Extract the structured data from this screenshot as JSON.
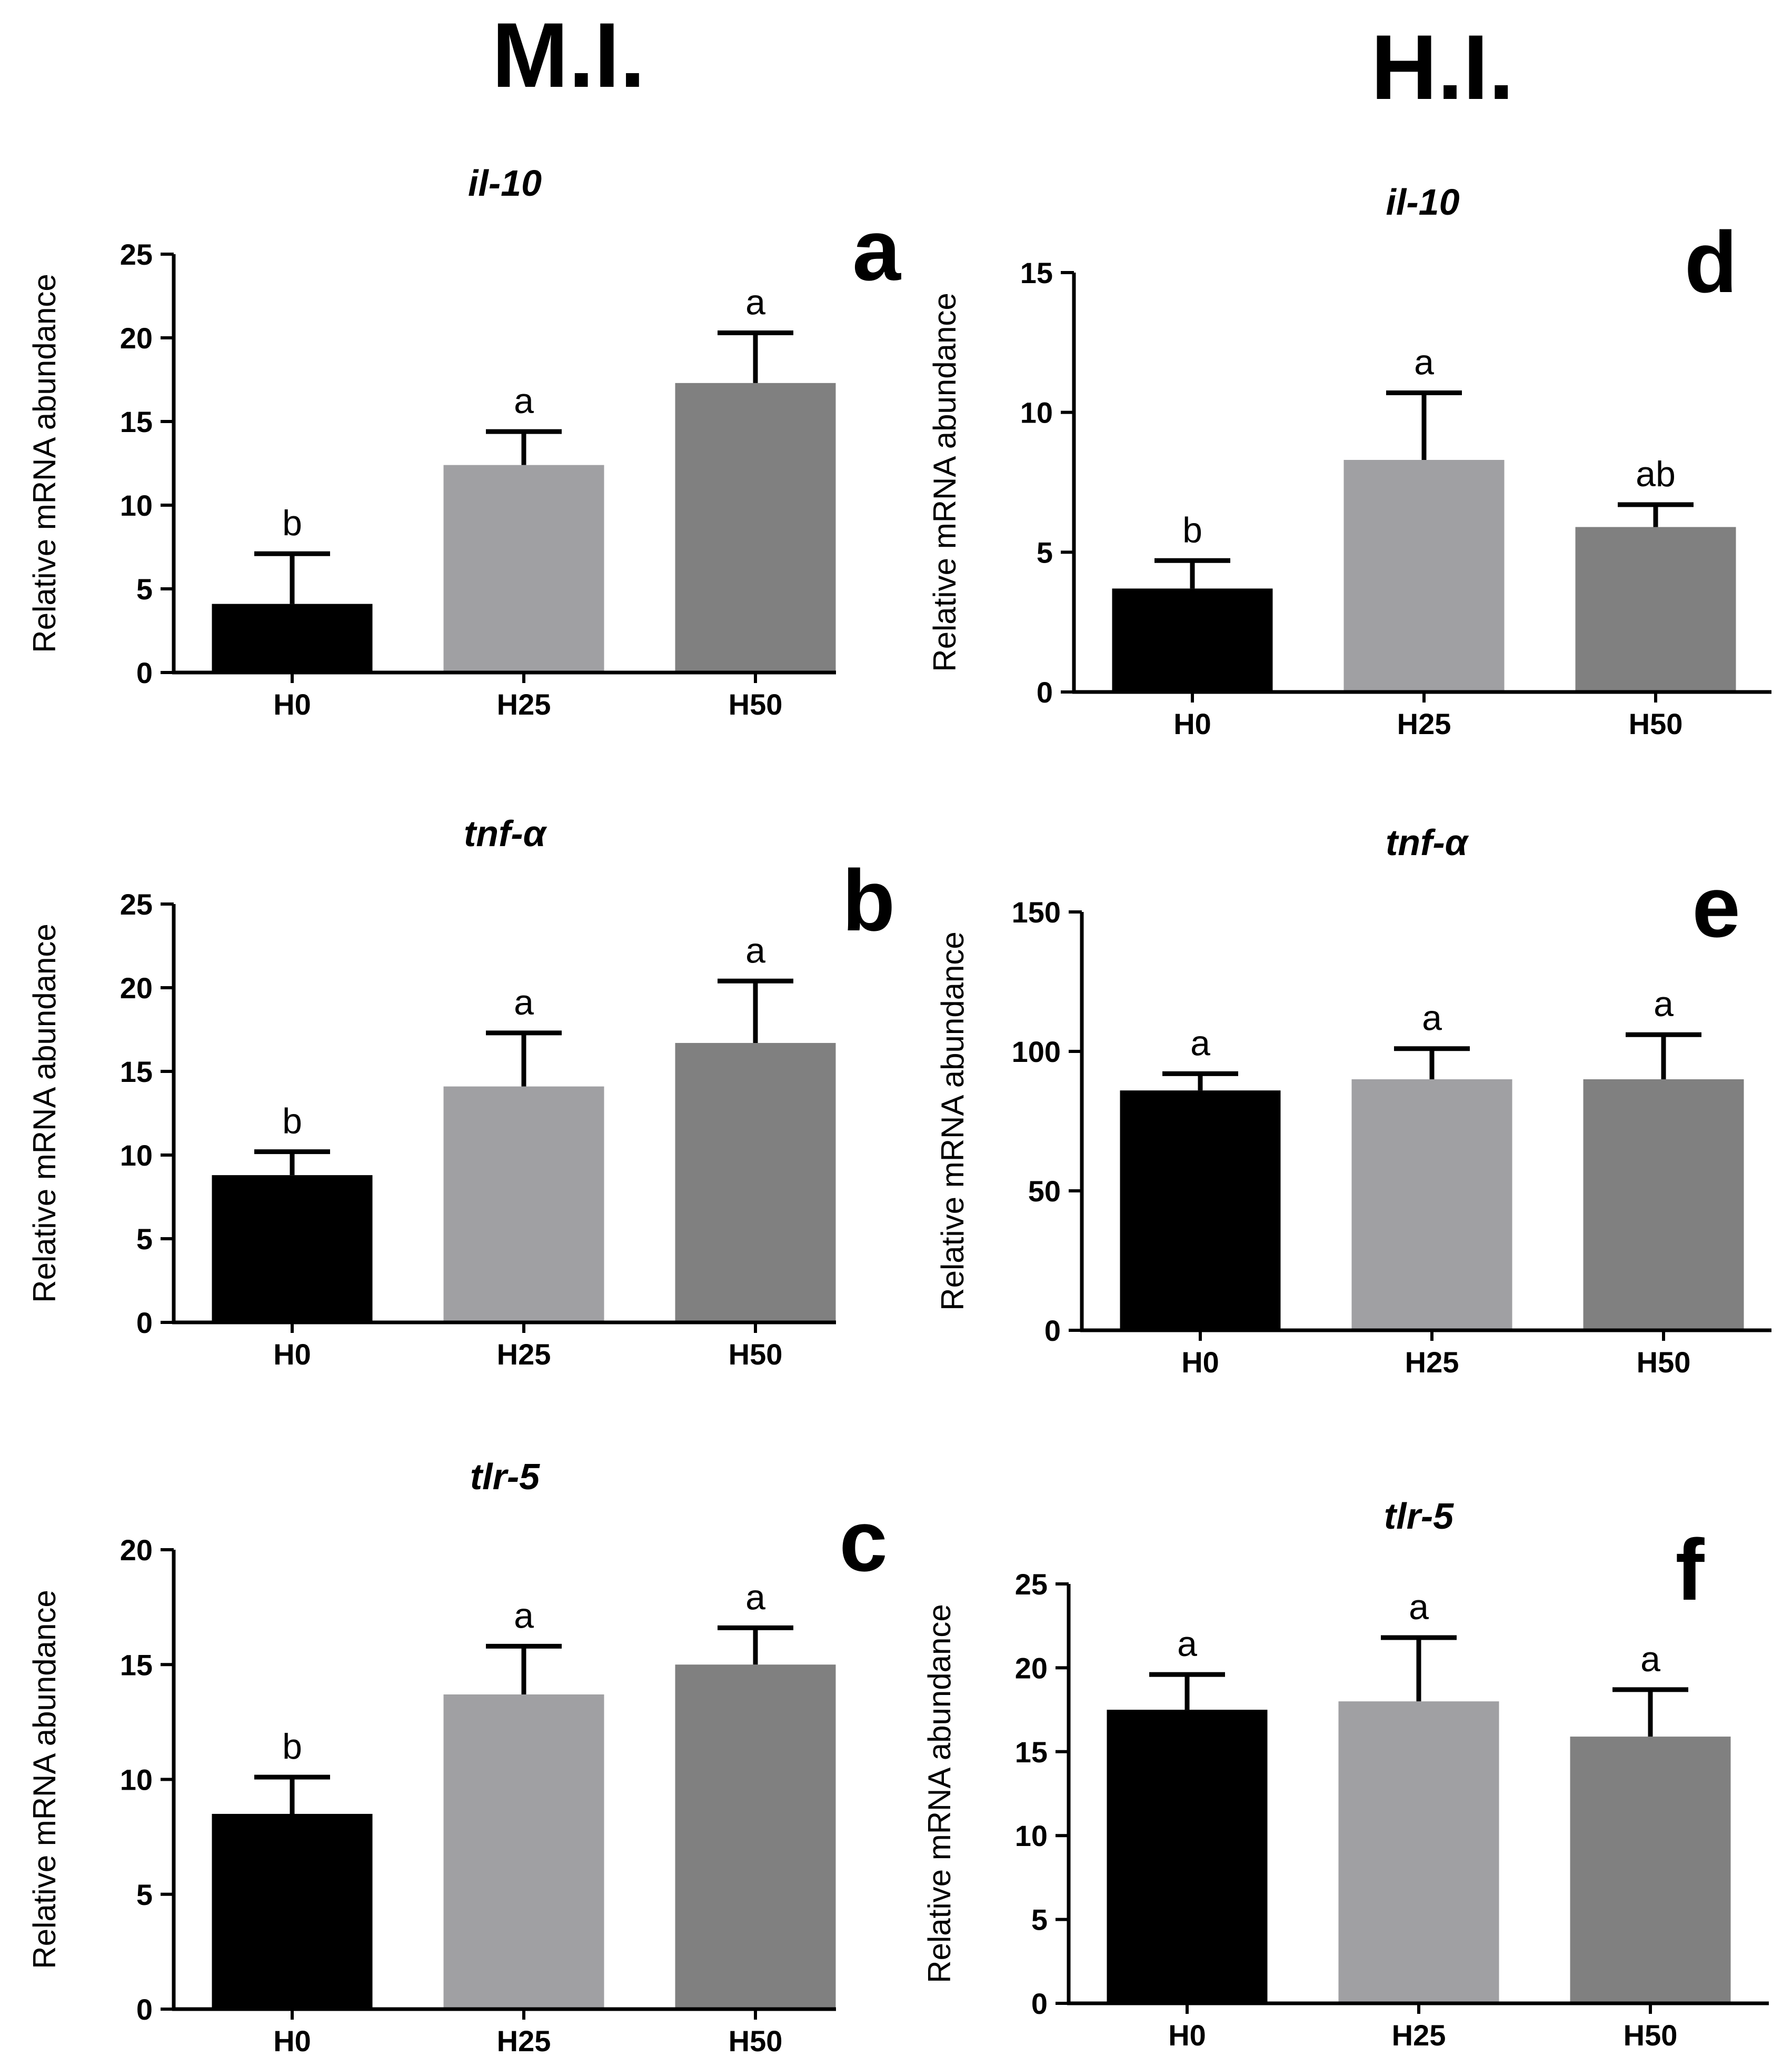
{
  "figure": {
    "column_headers": [
      "M.I.",
      "H.I."
    ]
  },
  "colors": {
    "H0": "#000000",
    "H25": "#a0a0a3",
    "H50": "#808080",
    "axis": "#000000"
  },
  "chart_data": [
    {
      "type": "bar",
      "panel": "a",
      "title": "il-10",
      "ylabel": "Relative mRNA abundance",
      "xlabel": "",
      "categories": [
        "H0",
        "H25",
        "H50"
      ],
      "values": [
        4.1,
        12.4,
        17.3
      ],
      "errors": [
        3.0,
        2.0,
        3.0
      ],
      "significance": [
        "b",
        "a",
        "a"
      ],
      "ylim": [
        0,
        25
      ],
      "yticks": [
        0,
        5,
        10,
        15,
        20,
        25
      ]
    },
    {
      "type": "bar",
      "panel": "b",
      "title": "tnf-α",
      "ylabel": "Relative mRNA abundance",
      "xlabel": "",
      "categories": [
        "H0",
        "H25",
        "H50"
      ],
      "values": [
        8.8,
        14.1,
        16.7
      ],
      "errors": [
        1.4,
        3.2,
        3.7
      ],
      "significance": [
        "b",
        "a",
        "a"
      ],
      "ylim": [
        0,
        25
      ],
      "yticks": [
        0,
        5,
        10,
        15,
        20,
        25
      ]
    },
    {
      "type": "bar",
      "panel": "c",
      "title": "tlr-5",
      "ylabel": "Relative mRNA abundance",
      "xlabel": "",
      "categories": [
        "H0",
        "H25",
        "H50"
      ],
      "values": [
        8.5,
        13.7,
        15.0
      ],
      "errors": [
        1.6,
        2.1,
        1.6
      ],
      "significance": [
        "b",
        "a",
        "a"
      ],
      "ylim": [
        0,
        20
      ],
      "yticks": [
        0,
        5,
        10,
        15,
        20
      ]
    },
    {
      "type": "bar",
      "panel": "d",
      "title": "il-10",
      "ylabel": "Relative mRNA abundance",
      "xlabel": "",
      "categories": [
        "H0",
        "H25",
        "H50"
      ],
      "values": [
        3.7,
        8.3,
        5.9
      ],
      "errors": [
        1.0,
        2.4,
        0.8
      ],
      "significance": [
        "b",
        "a",
        "ab"
      ],
      "ylim": [
        0,
        15
      ],
      "yticks": [
        0,
        5,
        10,
        15
      ]
    },
    {
      "type": "bar",
      "panel": "e",
      "title": "tnf-α",
      "ylabel": "Relative mRNA abundance",
      "xlabel": "",
      "categories": [
        "H0",
        "H25",
        "H50"
      ],
      "values": [
        86,
        90,
        90
      ],
      "errors": [
        6,
        11,
        16
      ],
      "significance": [
        "a",
        "a",
        "a"
      ],
      "ylim": [
        0,
        150
      ],
      "yticks": [
        0,
        50,
        100,
        150
      ]
    },
    {
      "type": "bar",
      "panel": "f",
      "title": "tlr-5",
      "ylabel": "Relative mRNA abundance",
      "xlabel": "",
      "categories": [
        "H0",
        "H25",
        "H50"
      ],
      "values": [
        17.5,
        18.0,
        15.9
      ],
      "errors": [
        2.1,
        3.8,
        2.8
      ],
      "significance": [
        "a",
        "a",
        "a"
      ],
      "ylim": [
        0,
        25
      ],
      "yticks": [
        0,
        5,
        10,
        15,
        20,
        25
      ]
    }
  ]
}
